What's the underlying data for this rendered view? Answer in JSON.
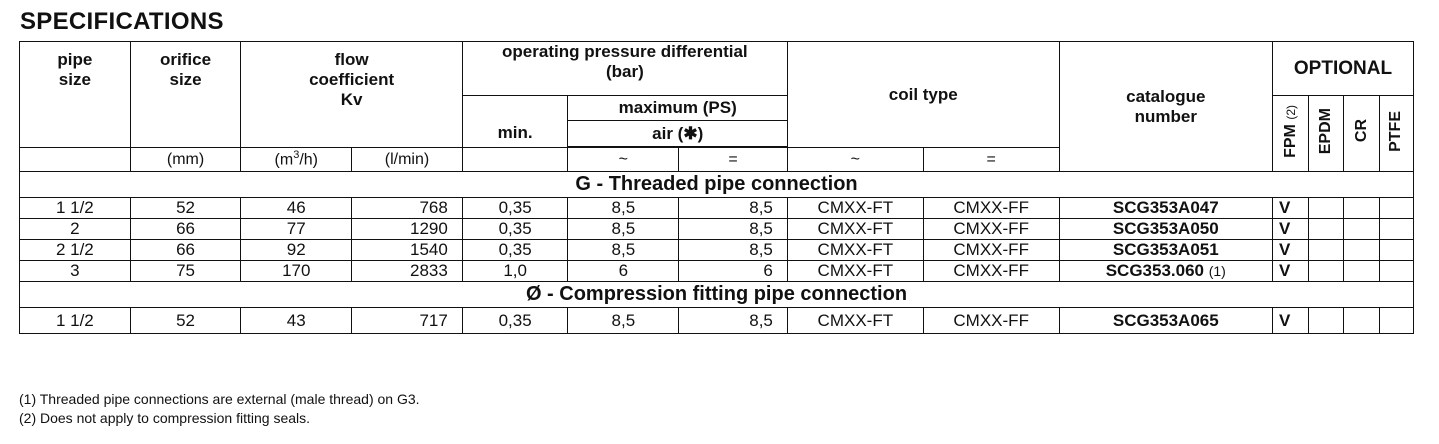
{
  "title": "SPECIFICATIONS",
  "headers": {
    "pipe_size": [
      "pipe",
      "size"
    ],
    "orifice_size": [
      "orifice",
      "size"
    ],
    "flow": [
      "flow",
      "coefficient",
      "Kv"
    ],
    "opd": [
      "operating pressure differential",
      "(bar)"
    ],
    "maximum": "maximum (PS)",
    "air": "air (✱)",
    "min": "min.",
    "coil_type": "coil type",
    "catalogue": [
      "catalogue",
      "number"
    ],
    "optional": "OPTIONAL",
    "optional_cols": {
      "fpm": "FPM",
      "fpm_note": "(2)",
      "epdm": "EPDM",
      "cr": "CR",
      "ptfe": "PTFE"
    }
  },
  "units": {
    "mm": "(mm)",
    "m3h_base": "(m",
    "m3h_sup": "3",
    "m3h_end": "/h)",
    "lmin": "(l/min)",
    "ac": "~",
    "dc": "="
  },
  "sections": [
    {
      "label": "G - Threaded pipe connection",
      "rows": [
        {
          "pipe": "1 1/2",
          "orifice": "52",
          "kv_m3h": "46",
          "kv_lmin": "768",
          "min": "0,35",
          "max_ac": "8,5",
          "max_dc": "8,5",
          "coil_ac": "CMXX-FT",
          "coil_dc": "CMXX-FF",
          "catalogue": "SCG353A047",
          "cat_note": "",
          "fpm": "V"
        },
        {
          "pipe": "2",
          "orifice": "66",
          "kv_m3h": "77",
          "kv_lmin": "1290",
          "min": "0,35",
          "max_ac": "8,5",
          "max_dc": "8,5",
          "coil_ac": "CMXX-FT",
          "coil_dc": "CMXX-FF",
          "catalogue": "SCG353A050",
          "cat_note": "",
          "fpm": "V"
        },
        {
          "pipe": "2 1/2",
          "orifice": "66",
          "kv_m3h": "92",
          "kv_lmin": "1540",
          "min": "0,35",
          "max_ac": "8,5",
          "max_dc": "8,5",
          "coil_ac": "CMXX-FT",
          "coil_dc": "CMXX-FF",
          "catalogue": "SCG353A051",
          "cat_note": "",
          "fpm": "V"
        },
        {
          "pipe": "3",
          "orifice": "75",
          "kv_m3h": "170",
          "kv_lmin": "2833",
          "min": "1,0",
          "max_ac": "6",
          "max_dc": "6",
          "coil_ac": "CMXX-FT",
          "coil_dc": "CMXX-FF",
          "catalogue": "SCG353.060",
          "cat_note": "(1)",
          "fpm": "V"
        }
      ]
    },
    {
      "label": "Ø - Compression fitting pipe connection",
      "rows": [
        {
          "pipe": "1 1/2",
          "orifice": "52",
          "kv_m3h": "43",
          "kv_lmin": "717",
          "min": "0,35",
          "max_ac": "8,5",
          "max_dc": "8,5",
          "coil_ac": "CMXX-FT",
          "coil_dc": "CMXX-FF",
          "catalogue": "SCG353A065",
          "cat_note": "",
          "fpm": "V"
        }
      ]
    }
  ],
  "footnotes": [
    "(1) Threaded pipe connections are external (male thread) on G3.",
    "(2) Does not apply to compression fitting seals."
  ]
}
